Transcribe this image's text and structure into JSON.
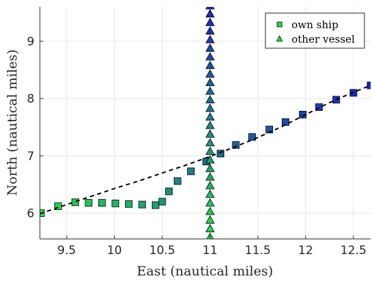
{
  "chart_data": {
    "type": "scatter",
    "xlabel": "East (nautical miles)",
    "ylabel": "North (nautical miles)",
    "xlim": [
      9.22,
      12.68
    ],
    "ylim": [
      5.55,
      9.6
    ],
    "xticks": [
      9.5,
      10,
      10.5,
      11,
      11.5,
      12,
      12.5
    ],
    "yticks": [
      6,
      7,
      8,
      9
    ],
    "xtick_labels": [
      "9.5",
      "10",
      "10.5",
      "11",
      "11.5",
      "12",
      "12.5"
    ],
    "ytick_labels": [
      "6",
      "7",
      "8",
      "9"
    ],
    "grid": true,
    "legend_position": "top-right",
    "colors": {
      "start": "#22dd44",
      "end": "#1a22cc",
      "trend_line": "#000000",
      "grid": "#e6e6e6",
      "axis": "#262626"
    },
    "series": [
      {
        "name": "own ship",
        "marker": "square",
        "points": [
          [
            9.23,
            6.0
          ],
          [
            9.41,
            6.12
          ],
          [
            9.59,
            6.19
          ],
          [
            9.73,
            6.18
          ],
          [
            9.87,
            6.18
          ],
          [
            10.01,
            6.17
          ],
          [
            10.15,
            6.16
          ],
          [
            10.29,
            6.15
          ],
          [
            10.43,
            6.14
          ],
          [
            10.5,
            6.2
          ],
          [
            10.57,
            6.38
          ],
          [
            10.66,
            6.56
          ],
          [
            10.8,
            6.73
          ],
          [
            10.96,
            6.9
          ],
          [
            11.11,
            7.04
          ],
          [
            11.27,
            7.19
          ],
          [
            11.44,
            7.33
          ],
          [
            11.62,
            7.46
          ],
          [
            11.79,
            7.59
          ],
          [
            11.97,
            7.72
          ],
          [
            12.14,
            7.85
          ],
          [
            12.32,
            7.98
          ],
          [
            12.5,
            8.1
          ],
          [
            12.68,
            8.23
          ]
        ]
      },
      {
        "name": "other vessel",
        "marker": "triangle",
        "points": [
          [
            11.0,
            5.58
          ],
          [
            11.0,
            5.73
          ],
          [
            11.0,
            5.88
          ],
          [
            11.0,
            6.03
          ],
          [
            11.0,
            6.18
          ],
          [
            11.0,
            6.33
          ],
          [
            11.0,
            6.48
          ],
          [
            11.0,
            6.63
          ],
          [
            11.0,
            6.78
          ],
          [
            11.0,
            6.93
          ],
          [
            11.0,
            7.08
          ],
          [
            11.0,
            7.23
          ],
          [
            11.0,
            7.38
          ],
          [
            11.0,
            7.53
          ],
          [
            11.0,
            7.68
          ],
          [
            11.0,
            7.83
          ],
          [
            11.0,
            7.98
          ],
          [
            11.0,
            8.13
          ],
          [
            11.0,
            8.28
          ],
          [
            11.0,
            8.43
          ],
          [
            11.0,
            8.58
          ],
          [
            11.0,
            8.73
          ],
          [
            11.0,
            8.88
          ],
          [
            11.0,
            9.03
          ],
          [
            11.0,
            9.18
          ],
          [
            11.0,
            9.33
          ],
          [
            11.0,
            9.48
          ],
          [
            11.0,
            9.62
          ]
        ]
      }
    ],
    "trend_line": {
      "style": "dashed",
      "points": [
        [
          9.22,
          5.99
        ],
        [
          9.5,
          6.15
        ],
        [
          9.75,
          6.29
        ],
        [
          10.0,
          6.43
        ],
        [
          10.25,
          6.56
        ],
        [
          10.5,
          6.7
        ],
        [
          10.75,
          6.84
        ],
        [
          11.0,
          6.99
        ],
        [
          11.25,
          7.15
        ],
        [
          11.5,
          7.32
        ],
        [
          11.75,
          7.51
        ],
        [
          12.0,
          7.72
        ],
        [
          12.25,
          7.93
        ],
        [
          12.5,
          8.11
        ],
        [
          12.68,
          8.23
        ]
      ]
    }
  }
}
